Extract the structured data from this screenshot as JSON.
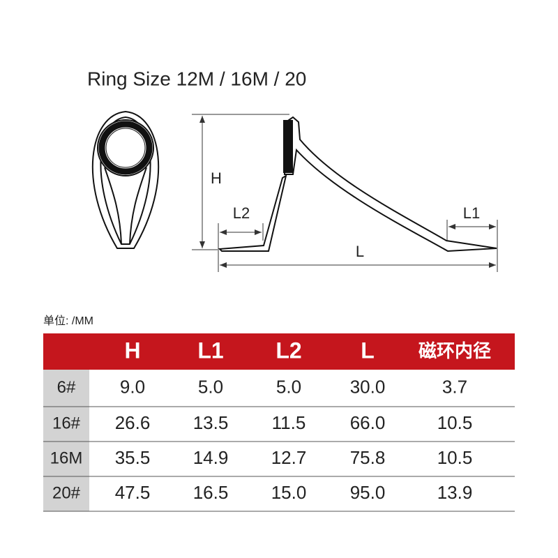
{
  "title": "Ring Size 12M / 16M / 20",
  "diagram": {
    "h_label": "H",
    "l2_label": "L2",
    "l1_label": "L1",
    "l_label": "L"
  },
  "unit": "单位: /MM",
  "table": {
    "columns": [
      "H",
      "L1",
      "L2",
      "L",
      "磁环内径"
    ],
    "rows": [
      {
        "label": "6#",
        "cells": [
          "9.0",
          "5.0",
          "5.0",
          "30.0",
          "3.7"
        ]
      },
      {
        "label": "16#",
        "cells": [
          "26.6",
          "13.5",
          "11.5",
          "66.0",
          "10.5"
        ]
      },
      {
        "label": "16M",
        "cells": [
          "35.5",
          "14.9",
          "12.7",
          "75.8",
          "10.5"
        ]
      },
      {
        "label": "20#",
        "cells": [
          "47.5",
          "16.5",
          "15.0",
          "95.0",
          "13.9"
        ]
      }
    ]
  }
}
